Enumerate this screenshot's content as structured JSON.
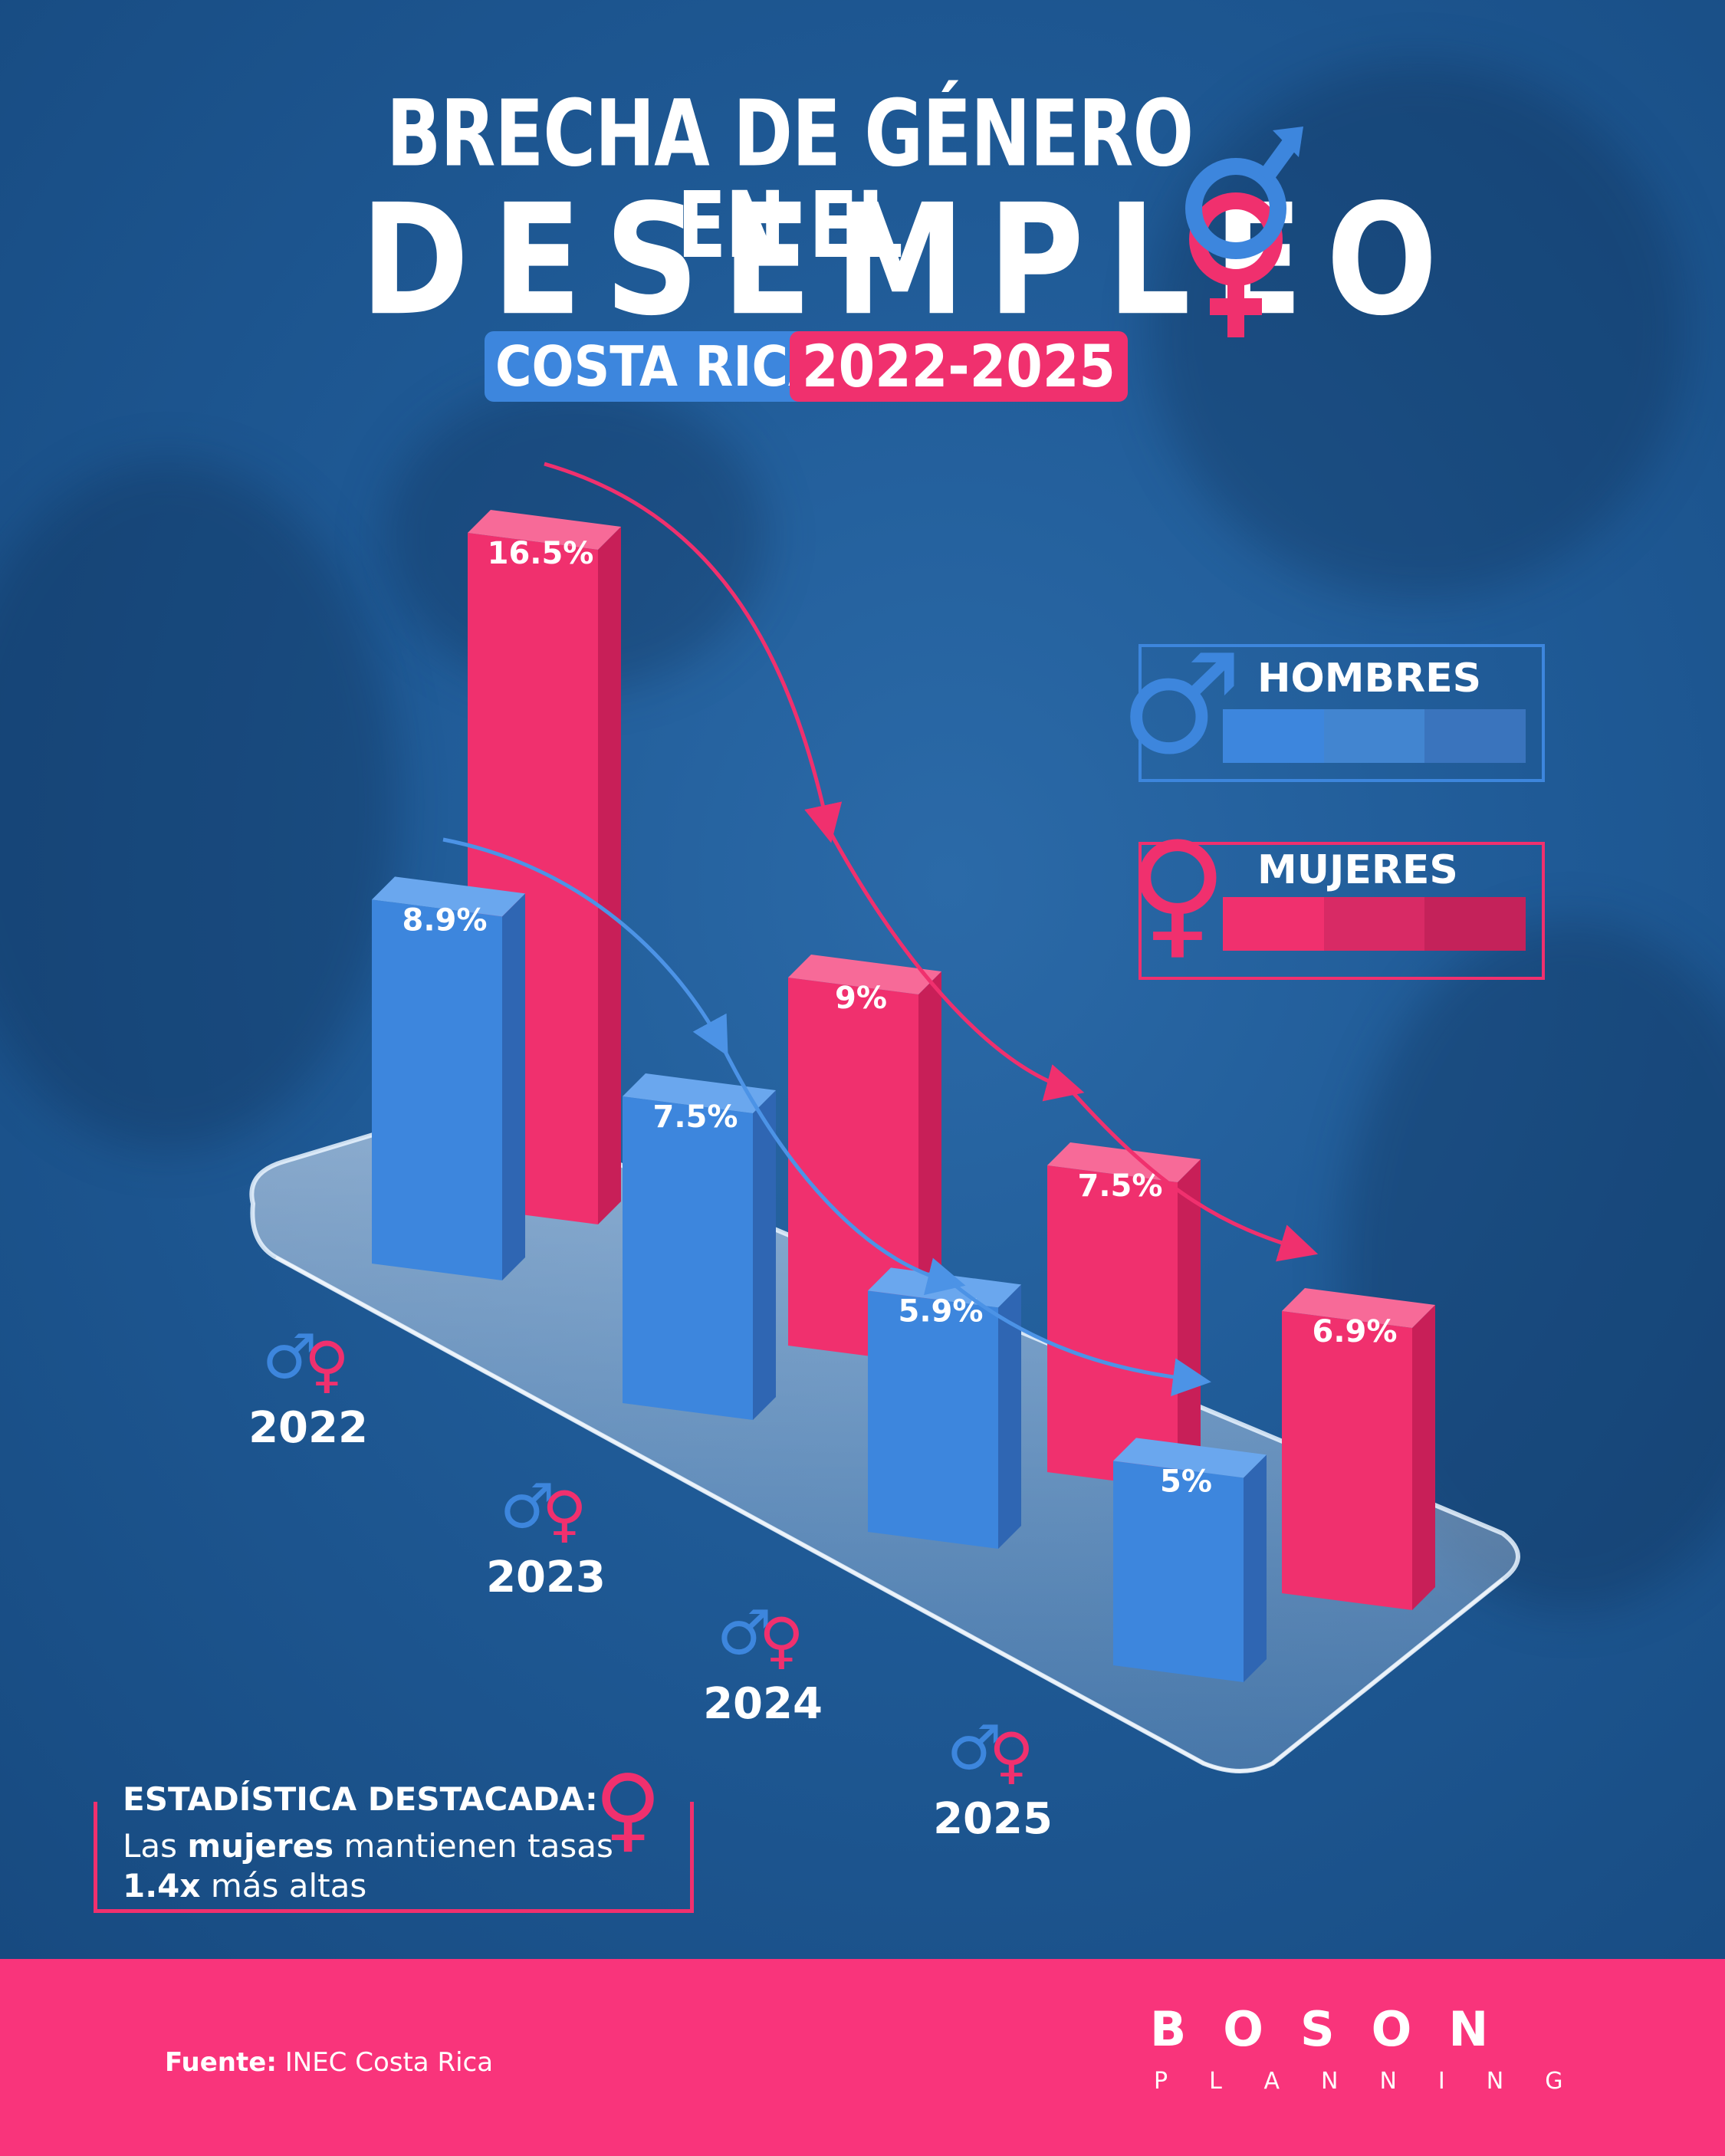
{
  "header": {
    "title_line1": "BRECHA DE GÉNERO EN EL",
    "title_line2": "DESEMPLEO",
    "country": "COSTA RICA",
    "years": "2022-2025"
  },
  "legend": {
    "men_label": "HOMBRES",
    "women_label": "MUJERES",
    "men_icon": "male-symbol-icon",
    "women_icon": "female-symbol-icon"
  },
  "colors": {
    "men": "#3d86dd",
    "women": "#f0306e",
    "background": "#1f5a96",
    "footer": "#f9347b"
  },
  "chart_data": {
    "type": "bar",
    "categories": [
      "2022",
      "2023",
      "2024",
      "2025"
    ],
    "series": [
      {
        "name": "HOMBRES",
        "values": [
          8.9,
          7.5,
          5.9,
          5.0
        ],
        "labels": [
          "8.9%",
          "7.5%",
          "5.9%",
          "5%"
        ]
      },
      {
        "name": "MUJERES",
        "values": [
          16.5,
          9.0,
          7.5,
          6.9
        ],
        "labels": [
          "16.5%",
          "9%",
          "7.5%",
          "6.9%"
        ]
      }
    ],
    "ylim": [
      0,
      18
    ],
    "grid": false,
    "legend_position": "right"
  },
  "highlight": {
    "title": "ESTADÍSTICA DESTACADA:",
    "line1_prefix": "Las ",
    "line1_bold": "mujeres",
    "line1_suffix": " mantienen tasas",
    "line2_bold": "1.4x",
    "line2_suffix": " más altas"
  },
  "footer": {
    "source_label": "Fuente:",
    "source_value": " INEC Costa Rica",
    "brand": "BOSON",
    "brand_sub": "PLANNING"
  }
}
